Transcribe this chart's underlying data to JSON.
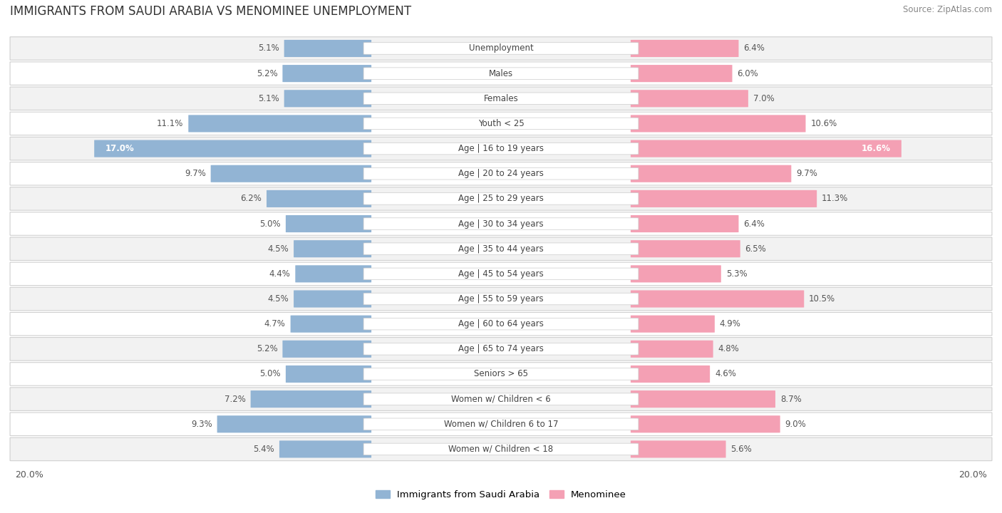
{
  "title": "IMMIGRANTS FROM SAUDI ARABIA VS MENOMINEE UNEMPLOYMENT",
  "source": "Source: ZipAtlas.com",
  "categories": [
    "Unemployment",
    "Males",
    "Females",
    "Youth < 25",
    "Age | 16 to 19 years",
    "Age | 20 to 24 years",
    "Age | 25 to 29 years",
    "Age | 30 to 34 years",
    "Age | 35 to 44 years",
    "Age | 45 to 54 years",
    "Age | 55 to 59 years",
    "Age | 60 to 64 years",
    "Age | 65 to 74 years",
    "Seniors > 65",
    "Women w/ Children < 6",
    "Women w/ Children 6 to 17",
    "Women w/ Children < 18"
  ],
  "left_values": [
    5.1,
    5.2,
    5.1,
    11.1,
    17.0,
    9.7,
    6.2,
    5.0,
    4.5,
    4.4,
    4.5,
    4.7,
    5.2,
    5.0,
    7.2,
    9.3,
    5.4
  ],
  "right_values": [
    6.4,
    6.0,
    7.0,
    10.6,
    16.6,
    9.7,
    11.3,
    6.4,
    6.5,
    5.3,
    10.5,
    4.9,
    4.8,
    4.6,
    8.7,
    9.0,
    5.6
  ],
  "left_color": "#92b4d4",
  "right_color": "#f4a0b4",
  "label_font_size": 8.5,
  "value_font_size": 8.5,
  "title_font_size": 12,
  "max_val": 20.0,
  "legend_left": "Immigrants from Saudi Arabia",
  "legend_right": "Menominee"
}
